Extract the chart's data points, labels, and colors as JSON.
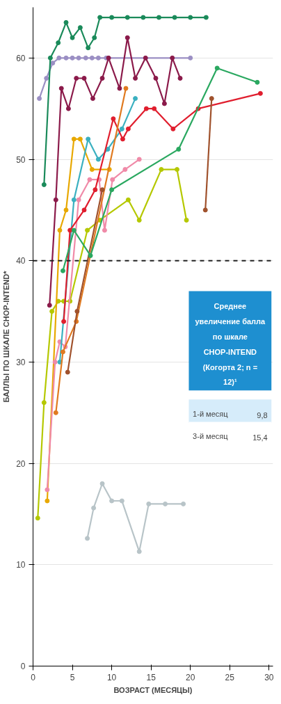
{
  "chart_data": {
    "type": "line",
    "xlabel": "ВОЗРАСТ (МЕСЯЦЫ)",
    "ylabel": "БАЛЛЫ ПО ШКАЛЕ CHOP-INTEND*",
    "xlim": [
      0,
      30.5
    ],
    "xticks": [
      0,
      5,
      10,
      15,
      20,
      25,
      30
    ],
    "ylim": [
      0,
      65
    ],
    "yticks": [
      0,
      10,
      20,
      30,
      40,
      50,
      60
    ],
    "grid": "y",
    "marker": "circle",
    "line_style": "solid",
    "ref_lines": [
      {
        "axis": "y",
        "value": 40,
        "label": null,
        "color": "#222222",
        "line_style": "dashed"
      }
    ],
    "annotations": [
      "Среднее увеличение балла по шкале CHOP-INTEND (Когорта 2; n = 12)¹",
      "1-й месяц",
      "9,8",
      "3-й месяц",
      "15,4"
    ],
    "series": [
      {
        "color": "#9b8fc4",
        "x": [
          0.8,
          1.7,
          2.5,
          3.3,
          4.2,
          5,
          5.8,
          6.7,
          7.5,
          8.3,
          9.3,
          20
        ],
        "values": [
          56,
          58,
          59.5,
          60,
          60,
          60,
          60,
          60,
          60,
          60,
          60,
          60
        ]
      },
      {
        "color": "#1a8a5a",
        "x": [
          1.4,
          2.2,
          3.2,
          4.2,
          5,
          6,
          7,
          7.8,
          8.5,
          10,
          12,
          14,
          16,
          18,
          20,
          22
        ],
        "values": [
          47.5,
          60,
          61.5,
          63.5,
          62,
          63,
          61,
          62,
          64,
          64,
          64,
          64,
          64,
          64,
          64,
          64
        ]
      },
      {
        "color": "#8b1a4a",
        "x": [
          2.1,
          2.9,
          3.6,
          4.5,
          5.5,
          6.5,
          7.6,
          8.8,
          9.6,
          11,
          12,
          13,
          14.3,
          15.6,
          16.7,
          17.7,
          18.7
        ],
        "values": [
          35.6,
          46,
          57,
          55,
          58,
          58,
          56,
          58,
          60,
          57,
          62,
          58,
          60,
          58,
          55.5,
          60,
          58
        ]
      },
      {
        "color": "#b5c800",
        "x": [
          0.6,
          1.4,
          2.4,
          3.2,
          3.9,
          4.7,
          6.9,
          8.5,
          12.1,
          13.5,
          16.3,
          18.3,
          19.5
        ],
        "values": [
          14.6,
          26,
          35,
          36,
          36,
          36,
          43,
          44,
          46,
          44,
          49,
          49,
          44
        ]
      },
      {
        "color": "#e8a800",
        "x": [
          1.8,
          3.4,
          4.2,
          5.2,
          6,
          7.5,
          9.7
        ],
        "values": [
          16.3,
          43,
          45,
          52,
          52,
          49,
          49
        ]
      },
      {
        "color": "#f08aa8",
        "x": [
          1.8,
          2.8,
          3.4,
          4.1,
          5.8,
          7.2,
          8.4,
          9.1,
          10.1,
          11.7,
          13.5
        ],
        "values": [
          17.4,
          30,
          32,
          31.5,
          46,
          48,
          48,
          43,
          48,
          49,
          50
        ]
      },
      {
        "color": "#3ab0c0",
        "x": [
          3.4,
          5.2,
          7,
          8.3,
          9.5,
          11.3,
          13
        ],
        "values": [
          30,
          46,
          52,
          50,
          51,
          53,
          56
        ]
      },
      {
        "color": "#e01e2e",
        "x": [
          3.9,
          4.7,
          6.5,
          7.9,
          10.2,
          11.4,
          12.1,
          14.4,
          15.4,
          17.8,
          21,
          28.9
        ],
        "values": [
          34,
          43,
          45,
          47,
          54,
          52,
          53,
          55,
          55,
          53,
          55,
          56.5
        ]
      },
      {
        "color": "#e07a20",
        "x": [
          2.9,
          3.8,
          5.5,
          11.8
        ],
        "values": [
          25,
          31,
          34,
          57
        ]
      },
      {
        "color": "#a0522d",
        "x": [
          4.4,
          5.6,
          8.8
        ],
        "values": [
          29,
          35,
          47
        ]
      },
      {
        "color": "#a0522d",
        "x": [
          21.9,
          22.7
        ],
        "values": [
          45,
          56
        ]
      },
      {
        "color": "#2aa860",
        "x": [
          3.8,
          5.2,
          7.3,
          10,
          18.5,
          23.4,
          28.5
        ],
        "values": [
          39,
          43,
          40.5,
          47,
          51,
          59,
          57.6
        ]
      },
      {
        "color": "#b8c4c8",
        "x": [
          6.9,
          7.7,
          8.8,
          10,
          11.3,
          13.5,
          14.7,
          16.8,
          19.1
        ],
        "values": [
          12.6,
          15.6,
          18,
          16.3,
          16.3,
          11.3,
          16,
          16,
          16
        ]
      }
    ]
  }
}
